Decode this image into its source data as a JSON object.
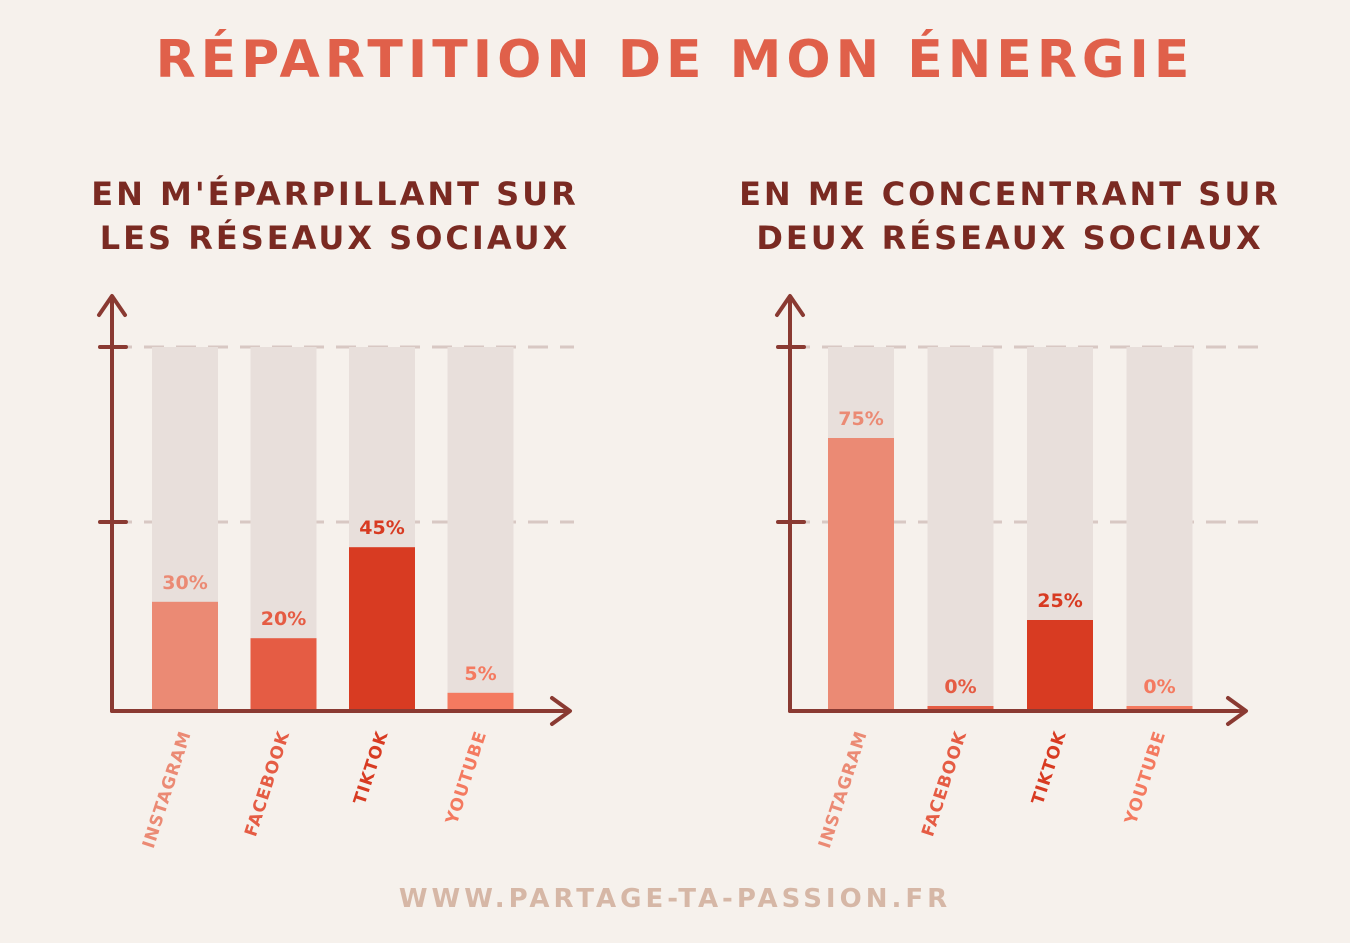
{
  "title": "Répartition de mon énergie",
  "footer": "www.partage-ta-passion.fr",
  "colors": {
    "title": "#e0604a",
    "subtitle": "#7a2a22",
    "axis": "#8a3a32",
    "track": "#e8dfdb",
    "footer": "#d6b7a6",
    "palette": [
      "#eb8a74",
      "#e55c44",
      "#d83b22",
      "#f47a60"
    ]
  },
  "chart_data": [
    {
      "type": "bar",
      "subtitle": "En m'éparpillant sur\nles réseaux sociaux",
      "categories": [
        "Instagram",
        "Facebook",
        "TikTok",
        "Youtube"
      ],
      "values": [
        30,
        20,
        45,
        5
      ],
      "value_labels": [
        "30%",
        "20%",
        "45%",
        "5%"
      ],
      "ylim": [
        0,
        100
      ],
      "grid": "dashed lines at 50 and 100",
      "legend": "none"
    },
    {
      "type": "bar",
      "subtitle": "En me concentrant sur\ndeux réseaux sociaux",
      "categories": [
        "Instagram",
        "Facebook",
        "TikTok",
        "Youtube"
      ],
      "values": [
        75,
        0,
        25,
        0
      ],
      "value_labels": [
        "75%",
        "0%",
        "25%",
        "0%"
      ],
      "ylim": [
        0,
        100
      ],
      "grid": "dashed lines at 50 and 100",
      "legend": "none"
    }
  ]
}
